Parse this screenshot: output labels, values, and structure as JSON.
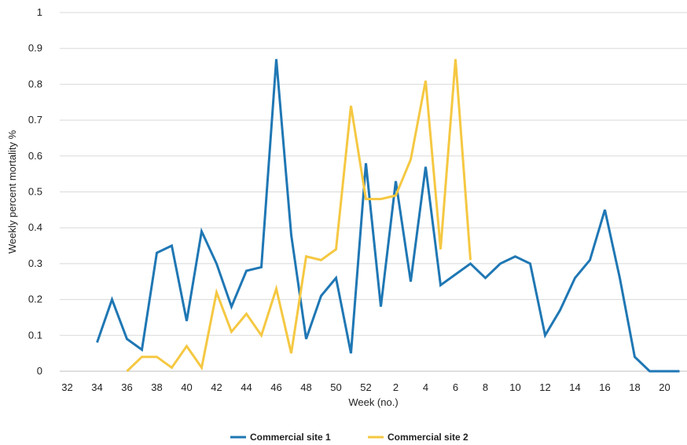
{
  "chart_data": {
    "type": "line",
    "title": "",
    "xlabel": "Week (no.)",
    "ylabel": "Weekly percent mortality %",
    "categories": [
      "32",
      "33",
      "34",
      "35",
      "36",
      "37",
      "38",
      "39",
      "40",
      "41",
      "42",
      "43",
      "44",
      "45",
      "46",
      "47",
      "48",
      "49",
      "50",
      "51",
      "52",
      "1",
      "2",
      "3",
      "4",
      "5",
      "6",
      "7",
      "8",
      "9",
      "10",
      "11",
      "12",
      "13",
      "14",
      "15",
      "16",
      "17",
      "18",
      "19",
      "20",
      "21"
    ],
    "x_tick_labels": [
      "32",
      "34",
      "36",
      "38",
      "40",
      "42",
      "44",
      "46",
      "48",
      "50",
      "52",
      "2",
      "4",
      "6",
      "8",
      "10",
      "12",
      "14",
      "16",
      "18",
      "20"
    ],
    "ylim": [
      0,
      1
    ],
    "y_ticks": [
      "0",
      "0.1",
      "0.2",
      "0.3",
      "0.4",
      "0.5",
      "0.6",
      "0.7",
      "0.8",
      "0.9",
      "1"
    ],
    "grid": true,
    "legend_position": "bottom-center",
    "series": [
      {
        "name": "Commercial site 1",
        "color": "#1f77b4",
        "values": [
          null,
          null,
          0.08,
          0.2,
          0.09,
          0.06,
          0.33,
          0.35,
          0.14,
          0.39,
          0.3,
          0.18,
          0.28,
          0.29,
          0.87,
          0.38,
          0.09,
          0.21,
          0.26,
          0.05,
          0.58,
          0.18,
          0.53,
          0.25,
          0.57,
          0.24,
          0.27,
          0.3,
          0.26,
          0.3,
          0.32,
          0.3,
          0.1,
          0.17,
          0.26,
          0.31,
          0.45,
          0.26,
          0.04,
          0.0,
          0.0,
          0.0
        ]
      },
      {
        "name": "Commercial site 2",
        "color": "#f5c842",
        "values": [
          null,
          null,
          null,
          null,
          0.0,
          0.04,
          0.04,
          0.01,
          0.07,
          0.01,
          0.22,
          0.11,
          0.16,
          0.1,
          0.23,
          0.05,
          0.32,
          0.31,
          0.34,
          0.74,
          0.48,
          0.48,
          0.49,
          0.59,
          0.81,
          0.34,
          0.87,
          0.31,
          null,
          null,
          null,
          null,
          null,
          null,
          null,
          null,
          null,
          null,
          null,
          null,
          null,
          null
        ]
      }
    ]
  }
}
